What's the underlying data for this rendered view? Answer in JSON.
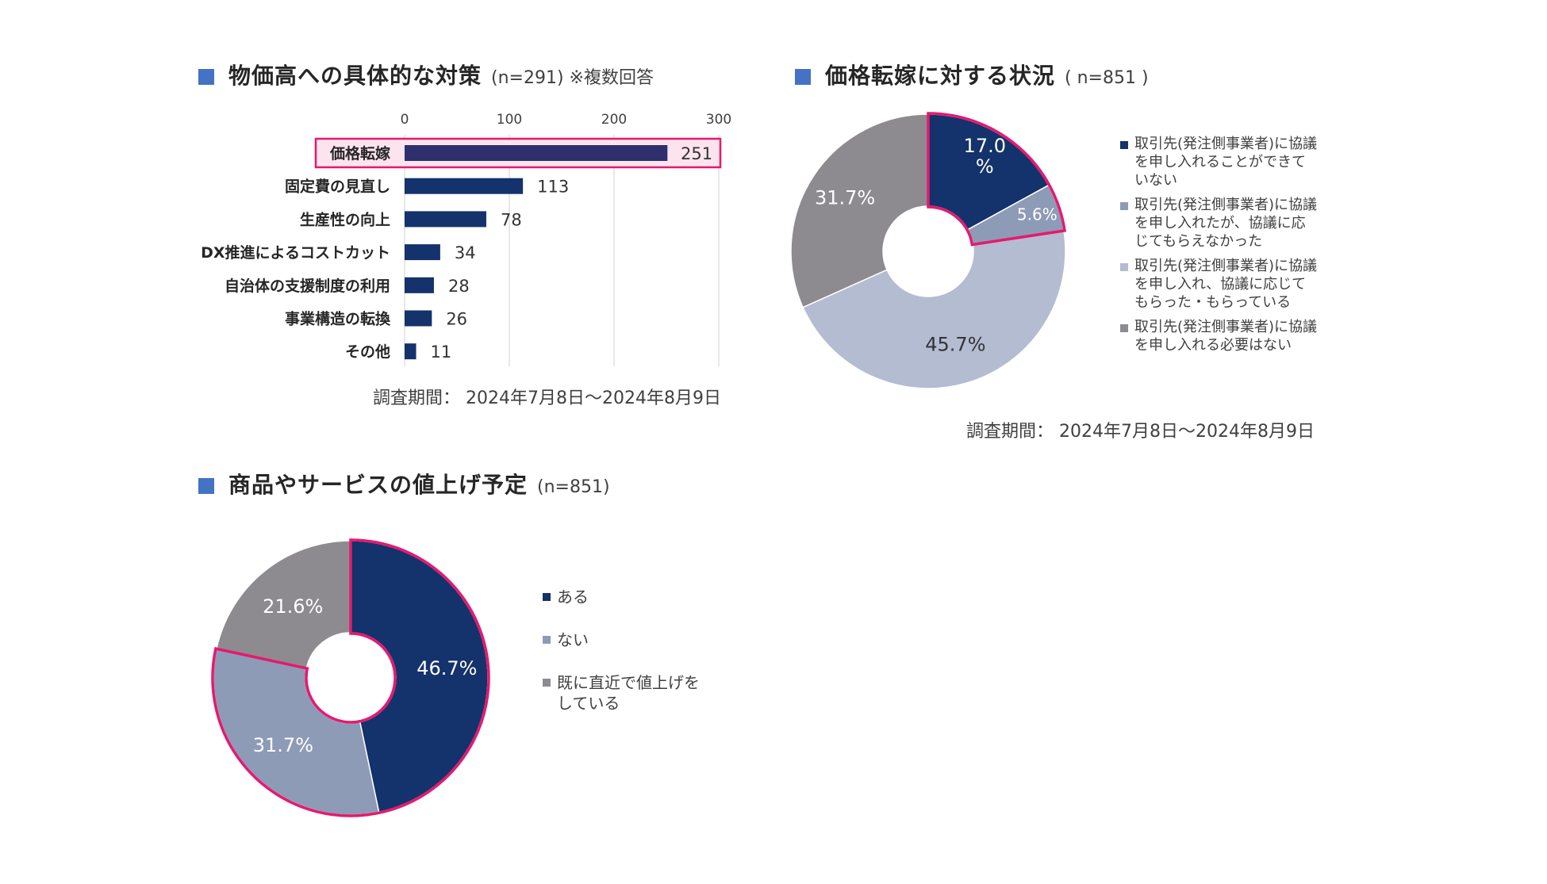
{
  "panel1": {
    "title": "物価高への具体的な対策",
    "subtitle": "(n=291) ※複数回答",
    "period": "調査期間： 2024年7月8日～2024年8月9日"
  },
  "panel2": {
    "title": "価格転嫁に対する状況",
    "subtitle": "( n=851 )",
    "period": "調査期間： 2024年7月8日～2024年8月9日"
  },
  "panel3": {
    "title": "商品やサービスの値上げ予定",
    "subtitle": "(n=851)"
  },
  "colors": {
    "navy": "#14326B",
    "slate": "#8E9BB7",
    "lightslate": "#B4BCD2",
    "gray": "#8D8B90",
    "highlight": "#E6196E",
    "highlight_fill": "#FCE4EF",
    "title_square": "#4472C4"
  },
  "chart_data": [
    {
      "type": "bar",
      "orientation": "horizontal",
      "categories": [
        "価格転嫁",
        "固定費の見直し",
        "生産性の向上",
        "DX推進によるコストカット",
        "自治体の支援制度の利用",
        "事業構造の転換",
        "その他"
      ],
      "values": [
        251,
        113,
        78,
        34,
        28,
        26,
        11
      ],
      "xlim": [
        0,
        300
      ],
      "xticks": [
        0,
        100,
        200,
        300
      ],
      "grid": true,
      "highlighted_category": "価格転嫁"
    },
    {
      "type": "pie",
      "donut": true,
      "labels": [
        "取引先(発注側事業者)に協議を申し入れることができていない",
        "取引先(発注側事業者)に協議を申し入れたが、協議に応じてもらえなかった",
        "取引先(発注側事業者)に協議を申し入れ、協議に応じてもらった・もらっている",
        "取引先(発注側事業者)に協議を申し入れる必要はない"
      ],
      "legend_lines": [
        [
          "取引先(発注側事業者)に協議",
          "を申し入れることができて",
          "いない"
        ],
        [
          "取引先(発注側事業者)に協議",
          "を申し入れたが、協議に応",
          "じてもらえなかった"
        ],
        [
          "取引先(発注側事業者)に協議",
          "を申し入れ、協議に応じて",
          "もらった・もらっている"
        ],
        [
          "取引先(発注側事業者)に協議",
          "を申し入れる必要はない"
        ]
      ],
      "values": [
        17.0,
        5.6,
        45.7,
        31.7
      ],
      "data_labels": [
        [
          "17.0",
          "%"
        ],
        [
          "5.6%"
        ],
        [
          "45.7%"
        ],
        [
          "31.7%"
        ]
      ],
      "colors": [
        "#14326B",
        "#8E9BB7",
        "#B4BCD2",
        "#8D8B90"
      ],
      "highlighted_slices": [
        0,
        1
      ],
      "legend_placement": "right"
    },
    {
      "type": "pie",
      "donut": true,
      "labels": [
        "ある",
        "ない",
        "既に直近で値上げをしている"
      ],
      "legend_lines": [
        [
          "ある"
        ],
        [
          "ない"
        ],
        [
          "既に直近で値上げを",
          "している"
        ]
      ],
      "values": [
        46.7,
        31.7,
        21.6
      ],
      "data_labels": [
        [
          "46.7%"
        ],
        [
          "31.7%"
        ],
        [
          "21.6%"
        ]
      ],
      "colors": [
        "#14326B",
        "#8E9BB7",
        "#8D8B90"
      ],
      "highlighted_slices": [
        0,
        1
      ],
      "legend_placement": "right"
    }
  ]
}
